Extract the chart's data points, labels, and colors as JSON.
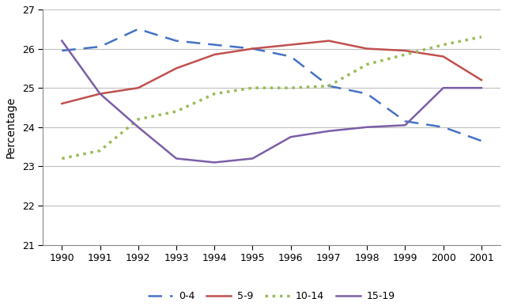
{
  "years": [
    1990,
    1991,
    1992,
    1993,
    1994,
    1995,
    1996,
    1997,
    1998,
    1999,
    2000,
    2001
  ],
  "series": {
    "0-4": [
      25.95,
      26.05,
      26.5,
      26.2,
      26.1,
      26.0,
      25.8,
      25.05,
      24.85,
      24.15,
      24.0,
      23.65
    ],
    "5-9": [
      24.6,
      24.85,
      25.0,
      25.5,
      25.85,
      26.0,
      26.1,
      26.2,
      26.0,
      25.95,
      25.8,
      25.2
    ],
    "10-14": [
      23.2,
      23.4,
      24.2,
      24.4,
      24.85,
      25.0,
      25.0,
      25.05,
      25.6,
      25.85,
      26.1,
      26.3
    ],
    "15-19": [
      26.2,
      24.85,
      24.0,
      23.2,
      23.1,
      23.2,
      23.75,
      23.9,
      24.0,
      24.05,
      25.0,
      25.0
    ]
  },
  "colors": {
    "0-4": "#4472c4",
    "5-9": "#c0504d",
    "10-14": "#9bbb59",
    "15-19": "#7b5ea7"
  },
  "ylabel": "Percentage",
  "ylim": [
    21,
    27
  ],
  "yticks": [
    21,
    22,
    23,
    24,
    25,
    26,
    27
  ],
  "background_color": "#ffffff",
  "grid_color": "#c0c0c0",
  "legend_labels": [
    "0-4",
    "5-9",
    "10-14",
    "15-19"
  ]
}
